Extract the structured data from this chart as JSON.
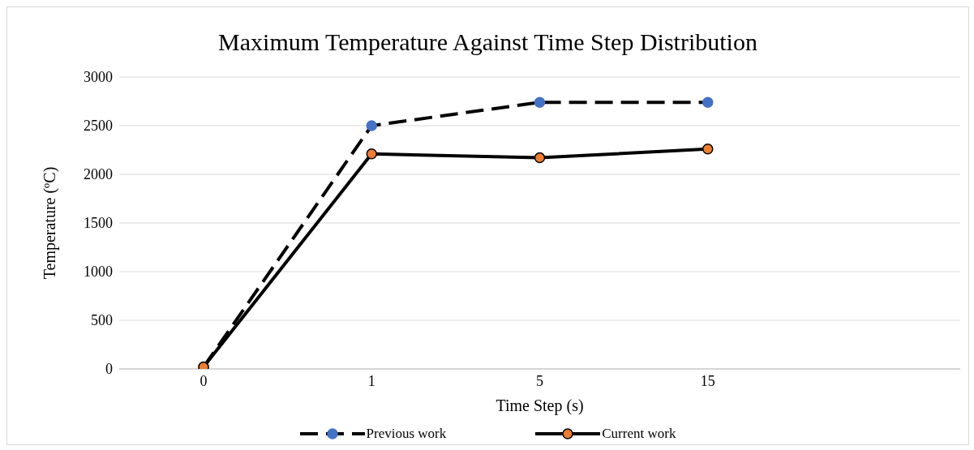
{
  "chart_data": {
    "type": "line",
    "title": "Maximum Temperature Against Time Step Distribution",
    "xlabel": "Time Step (s)",
    "ylabel": "Temperature (ºC)",
    "categories": [
      "0",
      "1",
      "5",
      "15",
      null
    ],
    "series": [
      {
        "name": "Previous  work",
        "color": "#000000",
        "colors": [
          "#ed7d31",
          "#4472c4",
          "#4472c4",
          "#4472c4",
          null
        ],
        "line_style": "dashed",
        "values": [
          20,
          2500,
          2740,
          2740,
          null
        ]
      },
      {
        "name": "Current work",
        "color": "#000000",
        "colors": [
          "#ed7d31",
          "#ed7d31",
          "#ed7d31",
          "#ed7d31",
          null
        ],
        "line_style": "solid",
        "values": [
          20,
          2210,
          2170,
          2260,
          null
        ]
      }
    ],
    "ylim": [
      0,
      3000
    ],
    "yticks": [
      0,
      500,
      1000,
      1500,
      2000,
      2500,
      3000
    ],
    "grid": "y",
    "legend": "bottom",
    "marker": "circle"
  }
}
